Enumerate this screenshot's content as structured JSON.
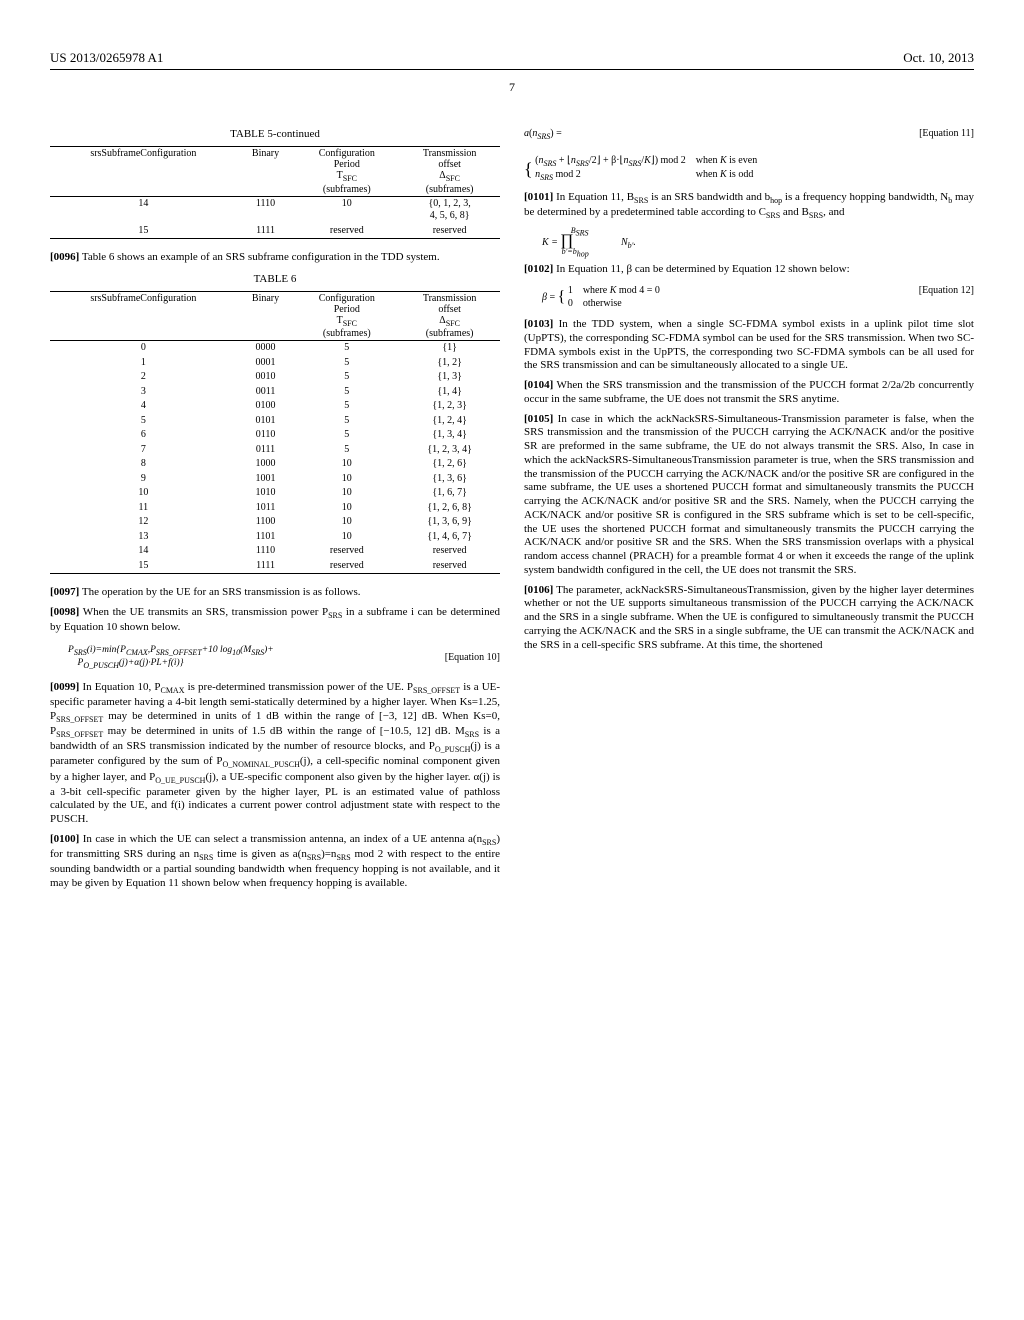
{
  "header": {
    "docnum": "US 2013/0265978 A1",
    "date": "Oct. 10, 2013"
  },
  "page_number": "7",
  "table5": {
    "caption": "TABLE 5-continued",
    "headers": [
      "srsSubframeConfiguration",
      "Binary",
      "Configuration Period T_SFC (subframes)",
      "Transmission offset Δ_SFC (subframes)"
    ],
    "rows": [
      [
        "14",
        "1110",
        "10",
        "{0, 1, 2, 3, 4, 5, 6, 8}"
      ],
      [
        "15",
        "1111",
        "reserved",
        "reserved"
      ]
    ]
  },
  "para96": {
    "num": "[0096]",
    "text": "Table 6 shows an example of an SRS subframe configuration in the TDD system."
  },
  "table6": {
    "caption": "TABLE 6",
    "headers": [
      "srsSubframeConfiguration",
      "Binary",
      "Configuration Period T_SFC (subframes)",
      "Transmission offset Δ_SFC (subframes)"
    ],
    "rows": [
      [
        "0",
        "0000",
        "5",
        "{1}"
      ],
      [
        "1",
        "0001",
        "5",
        "{1, 2}"
      ],
      [
        "2",
        "0010",
        "5",
        "{1, 3}"
      ],
      [
        "3",
        "0011",
        "5",
        "{1, 4}"
      ],
      [
        "4",
        "0100",
        "5",
        "{1, 2, 3}"
      ],
      [
        "5",
        "0101",
        "5",
        "{1, 2, 4}"
      ],
      [
        "6",
        "0110",
        "5",
        "{1, 3, 4}"
      ],
      [
        "7",
        "0111",
        "5",
        "{1, 2, 3, 4}"
      ],
      [
        "8",
        "1000",
        "10",
        "{1, 2, 6}"
      ],
      [
        "9",
        "1001",
        "10",
        "{1, 3, 6}"
      ],
      [
        "10",
        "1010",
        "10",
        "{1, 6, 7}"
      ],
      [
        "11",
        "1011",
        "10",
        "{1, 2, 6, 8}"
      ],
      [
        "12",
        "1100",
        "10",
        "{1, 3, 6, 9}"
      ],
      [
        "13",
        "1101",
        "10",
        "{1, 4, 6, 7}"
      ],
      [
        "14",
        "1110",
        "reserved",
        "reserved"
      ],
      [
        "15",
        "1111",
        "reserved",
        "reserved"
      ]
    ]
  },
  "para97": {
    "num": "[0097]",
    "text": "The operation by the UE for an SRS transmission is as follows."
  },
  "para98": {
    "num": "[0098]",
    "text": "When the UE transmits an SRS, transmission power P_SRS in a subframe i can be determined by Equation 10 shown below."
  },
  "eq10": {
    "text": "P_SRS(i)=min{P_CMAX, P_SRS_OFFSET+10 log₁₀(M_SRS)+ P_O_PUSCH(j)+α(j)·PL+f(i)}",
    "label": "[Equation 10]"
  },
  "para99": {
    "num": "[0099]",
    "text": "In Equation 10, P_CMAX is pre-determined transmission power of the UE. P_SRS_OFFSET is a UE-specific parameter having a 4-bit length semi-statically determined by a higher layer. When Ks=1.25, P_SRS_OFFSET may be determined in units of 1 dB within the range of [−3, 12] dB. When Ks=0, P_SRS_OFFSET may be determined in units of 1.5 dB within the range of [−10.5, 12] dB. M_SRS is a bandwidth of an SRS transmission indicated by the number of resource blocks, and P_O_PUSCH(j) is a parameter configured by the sum of P_O_NOMINAL_PUSCH(j), a cell-specific nominal component given by a higher layer, and P_O_UE_PUSCH(j), a UE-specific component also given by the higher layer. α(j) is a 3-bit cell-specific parameter given by the higher layer, PL is an estimated value of pathloss calculated by the UE, and f(i) indicates a current power control adjustment state with respect to the PUSCH."
  },
  "para100": {
    "num": "[0100]",
    "text": "In case in which the UE can select a transmission antenna, an index of a UE antenna a(n_SRS) for transmitting SRS during an n_SRS time is given as a(n_SRS)=n_SRS mod 2 with respect to the entire sounding bandwidth or a partial sounding bandwidth when frequency hopping is not available, and it may be given by Equation 11 shown below when frequency hopping is available."
  },
  "eq11": {
    "left": "a(n_SRS) =",
    "case1": "(n_SRS + ⌊n_SRS/2⌋ + β·⌊n_SRS/K⌋) mod 2   when K is even",
    "case2": "n_SRS mod 2   when K is odd",
    "label": "[Equation 11]"
  },
  "para101": {
    "num": "[0101]",
    "text": "In Equation 11, B_SRS is an SRS bandwidth and b_hop is a frequency hopping bandwidth, N_b may be determined by a predetermined table according to C_SRS and B_SRS, and"
  },
  "eqK": {
    "text": "K = ∏_{b'=b_hop}^{B_SRS} N_{b'}."
  },
  "para102": {
    "num": "[0102]",
    "text": "In Equation 11, β can be determined by Equation 12 shown below:"
  },
  "eq12": {
    "left": "β =",
    "case1": "1   where K mod 4 = 0",
    "case2": "0   otherwise",
    "label": "[Equation 12]"
  },
  "para103": {
    "num": "[0103]",
    "text": "In the TDD system, when a single SC-FDMA symbol exists in a uplink pilot time slot (UpPTS), the corresponding SC-FDMA symbol can be used for the SRS transmission. When two SC-FDMA symbols exist in the UpPTS, the corresponding two SC-FDMA symbols can be all used for the SRS transmission and can be simultaneously allocated to a single UE."
  },
  "para104": {
    "num": "[0104]",
    "text": "When the SRS transmission and the transmission of the PUCCH format 2/2a/2b concurrently occur in the same subframe, the UE does not transmit the SRS anytime."
  },
  "para105": {
    "num": "[0105]",
    "text": "In case in which the ackNackSRS-Simultaneous-Transmission parameter is false, when the SRS transmission and the transmission of the PUCCH carrying the ACK/NACK and/or the positive SR are preformed in the same subframe, the UE do not always transmit the SRS. Also, In case in which the ackNackSRS-SimultaneousTransmission parameter is true, when the SRS transmission and the transmission of the PUCCH carrying the ACK/NACK and/or the positive SR are configured in the same subframe, the UE uses a shortened PUCCH format and simultaneously transmits the PUCCH carrying the ACK/NACK and/or positive SR and the SRS. Namely, when the PUCCH carrying the ACK/NACK and/or positive SR is configured in the SRS subframe which is set to be cell-specific, the UE uses the shortened PUCCH format and simultaneously transmits the PUCCH carrying the ACK/NACK and/or positive SR and the SRS. When the SRS transmission overlaps with a physical random access channel (PRACH) for a preamble format 4 or when it exceeds the range of the uplink system bandwidth configured in the cell, the UE does not transmit the SRS."
  },
  "para106": {
    "num": "[0106]",
    "text": "The parameter, ackNackSRS-SimultaneousTransmission, given by the higher layer determines whether or not the UE supports simultaneous transmission of the PUCCH carrying the ACK/NACK and the SRS in a single subframe. When the UE is configured to simultaneously transmit the PUCCH carrying the ACK/NACK and the SRS in a single subframe, the UE can transmit the ACK/NACK and the SRS in a cell-specific SRS subframe. At this time, the shortened"
  }
}
